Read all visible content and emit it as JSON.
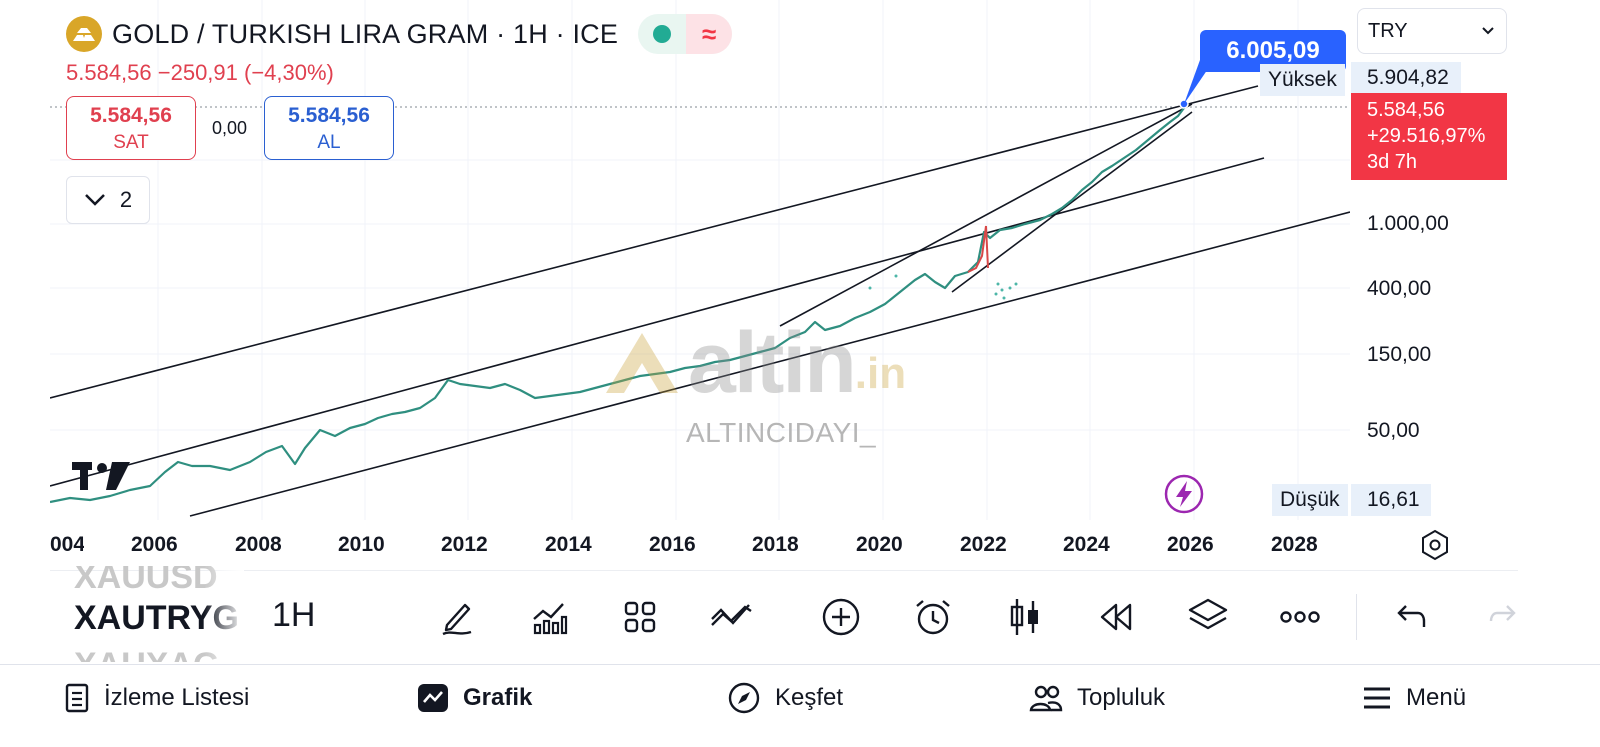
{
  "header": {
    "title": "GOLD / TURKISH LIRA GRAM · 1H · ICE",
    "price_change": "5.584,56  −250,91 (−4,30%)"
  },
  "quote": {
    "sell_value": "5.584,56",
    "sell_label": "SAT",
    "spread": "0,00",
    "buy_value": "5.584,56",
    "buy_label": "AL",
    "collapse_count": "2"
  },
  "currency": {
    "selected": "TRY"
  },
  "price_axis": {
    "high_label": "Yüksek",
    "high_value": "5.904,82",
    "last_price": "5.584,56",
    "last_change": "+29.516,97%",
    "last_countdown": "3d 7h",
    "ticks": [
      "1.000,00",
      "400,00",
      "150,00",
      "50,00"
    ],
    "low_label": "Düşük",
    "low_value": "16,61"
  },
  "callout": {
    "value": "6.005,09"
  },
  "time_axis": {
    "labels": [
      "004",
      "2006",
      "2008",
      "2010",
      "2012",
      "2014",
      "2016",
      "2018",
      "2020",
      "2022",
      "2024",
      "2026",
      "2028"
    ]
  },
  "watermark": {
    "logo_main": "altin",
    "logo_suffix": ".in",
    "caption": "ALTINCIDAYI_"
  },
  "toolbar": {
    "symbol_prev": "XAUUSD",
    "symbol_current": "XAUTRYG",
    "symbol_next": "XAUXAG",
    "interval": "1H"
  },
  "bottom_nav": {
    "watchlist": "İzleme Listesi",
    "chart": "Grafik",
    "explore": "Keşfet",
    "community": "Topluluk",
    "menu": "Menü"
  },
  "colors": {
    "up": "#22ab94",
    "down": "#f23645",
    "accent": "#2962ff",
    "gold": "#d9a628"
  }
}
